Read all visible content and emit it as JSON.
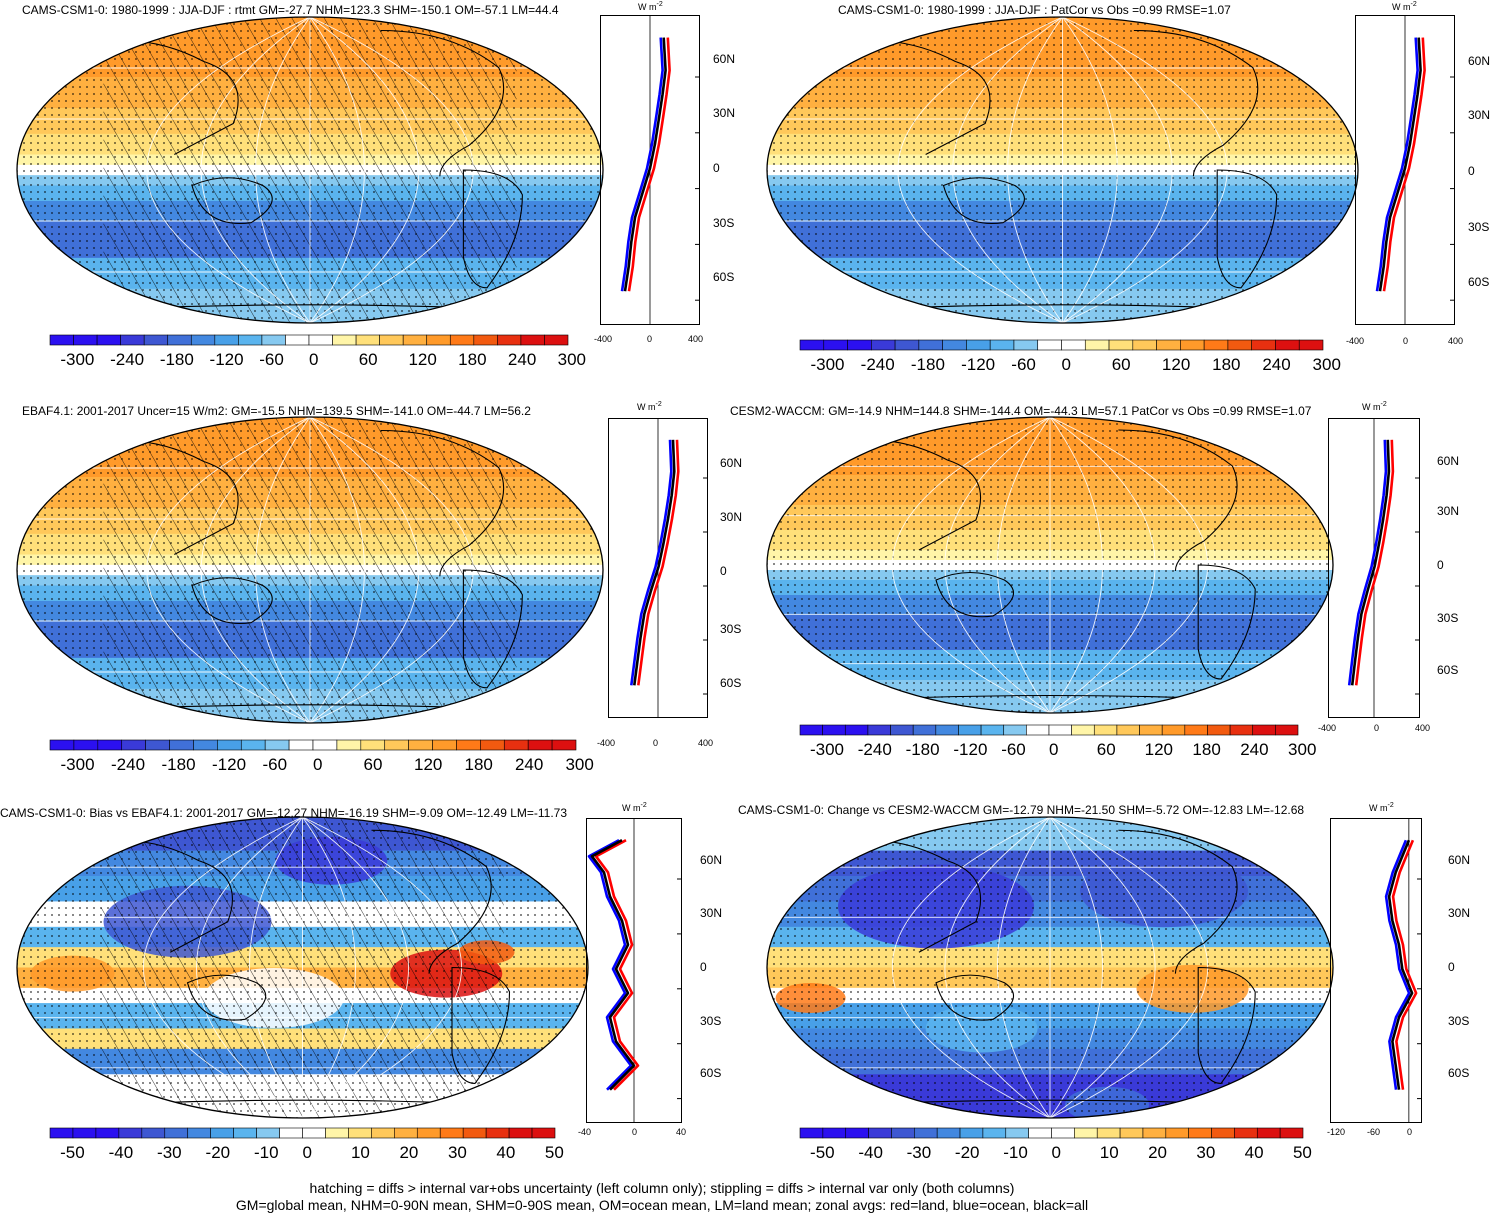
{
  "unit_label": "W m",
  "unit_exponent": "-2",
  "footer": {
    "line1": "hatching = diffs > internal var+obs uncertainty (left column only); stippling = diffs > internal var only (both columns)",
    "line2": "GM=global mean, NHM=0-90N mean, SHM=0-90S mean, OM=ocean mean, LM=land mean; zonal avgs: red=land, blue=ocean, black=all"
  },
  "colors": {
    "full_scale": [
      "#2b10f0",
      "#3a3ad8",
      "#3e57d2",
      "#4070d8",
      "#4388e0",
      "#48a0e8",
      "#5ab4ee",
      "#86c9f0",
      "#ffffff",
      "#ffffff",
      "#fff5a8",
      "#ffe07a",
      "#ffc85a",
      "#ffb040",
      "#ff9a2a",
      "#ff7a18",
      "#f25a10",
      "#e83010",
      "#dc1010"
    ],
    "line_land": "#ff0000",
    "line_ocean": "#0000ff",
    "line_all": "#000000"
  },
  "panels": [
    {
      "title": "CAMS-CSM1-0: 1980-1999 : JJA-DJF : rtmt GM=-27.7 NHM=123.3 SHM=-150.1 OM=-57.1 LM=44.4",
      "field": "mean",
      "hatched": true,
      "lat_labels": [
        "60N",
        "30N",
        "0",
        "30S",
        "60S"
      ],
      "zonal_xticks": [
        "-400",
        "0",
        "400"
      ],
      "colorbar_labels": [
        "-300",
        "-240",
        "-180",
        "-120",
        "-60",
        "0",
        "60",
        "120",
        "180",
        "240",
        "300"
      ]
    },
    {
      "title": "CAMS-CSM1-0: 1980-1999 : JJA-DJF : PatCor vs Obs =0.99 RMSE=1.07",
      "field": "mean",
      "hatched": false,
      "lat_labels": [
        "60N",
        "30N",
        "0",
        "30S",
        "60S"
      ],
      "zonal_xticks": [
        "-400",
        "0",
        "400"
      ],
      "colorbar_labels": [
        "-300",
        "-240",
        "-180",
        "-120",
        "-60",
        "0",
        "60",
        "120",
        "180",
        "240",
        "300"
      ]
    },
    {
      "title": "EBAF4.1: 2001-2017 Uncer=15 W/m2: GM=-15.5 NHM=139.5 SHM=-141.0 OM=-44.7 LM=56.2",
      "field": "mean",
      "hatched": true,
      "lat_labels": [
        "60N",
        "30N",
        "0",
        "30S",
        "60S"
      ],
      "zonal_xticks": [
        "-400",
        "0",
        "400"
      ],
      "colorbar_labels": [
        "-300",
        "-240",
        "-180",
        "-120",
        "-60",
        "0",
        "60",
        "120",
        "180",
        "240",
        "300"
      ]
    },
    {
      "title": "CESM2-WACCM: GM=-14.9 NHM=144.8 SHM=-144.4 OM=-44.3 LM=57.1 PatCor vs Obs =0.99 RMSE=1.07",
      "field": "mean",
      "hatched": false,
      "lat_labels": [
        "60N",
        "30N",
        "0",
        "30S",
        "60S"
      ],
      "zonal_xticks": [
        "-400",
        "0",
        "400"
      ],
      "colorbar_labels": [
        "-300",
        "-240",
        "-180",
        "-120",
        "-60",
        "0",
        "60",
        "120",
        "180",
        "240",
        "300"
      ]
    },
    {
      "title": "CAMS-CSM1-0: Bias vs EBAF4.1: 2001-2017 GM=-12.27 NHM=-16.19 SHM=-9.09 OM=-12.49 LM=-11.73",
      "field": "diff",
      "hatched": true,
      "lat_labels": [
        "60N",
        "30N",
        "0",
        "30S",
        "60S"
      ],
      "zonal_xticks": [
        "-40",
        "0",
        "40"
      ],
      "colorbar_labels": [
        "-50",
        "-40",
        "-30",
        "-20",
        "-10",
        "0",
        "10",
        "20",
        "30",
        "40",
        "50"
      ]
    },
    {
      "title": "CAMS-CSM1-0: Change vs CESM2-WACCM GM=-12.79 NHM=-21.50 SHM=-5.72 OM=-12.83 LM=-12.68",
      "field": "diff",
      "hatched": false,
      "lat_labels": [
        "60N",
        "30N",
        "0",
        "30S",
        "60S"
      ],
      "zonal_xticks": [
        "-120",
        "-60",
        "0"
      ],
      "colorbar_labels": [
        "-50",
        "-40",
        "-30",
        "-20",
        "-10",
        "0",
        "10",
        "20",
        "30",
        "40",
        "50"
      ]
    }
  ],
  "chart_data": [
    {
      "type": "heatmap",
      "title": "CAMS-CSM1-0: 1980-1999 : JJA-DJF : rtmt GM=-27.7 NHM=123.3 SHM=-150.1 OM=-57.1 LM=44.4",
      "ylabel": "W m-2",
      "zonal_lat": [
        80,
        60,
        45,
        30,
        15,
        0,
        -15,
        -30,
        -45,
        -60,
        -75
      ],
      "zonal_all": [
        110,
        125,
        100,
        70,
        40,
        0,
        -60,
        -120,
        -150,
        -170,
        -200
      ],
      "xlim": [
        -400,
        400
      ]
    },
    {
      "type": "heatmap",
      "title": "CAMS-CSM1-0: 1980-1999 : JJA-DJF : PatCor vs Obs =0.99 RMSE=1.07",
      "ylabel": "W m-2",
      "zonal_lat": [
        80,
        60,
        45,
        30,
        15,
        0,
        -15,
        -30,
        -45,
        -60,
        -75
      ],
      "zonal_all": [
        110,
        125,
        100,
        70,
        40,
        0,
        -60,
        -120,
        -150,
        -170,
        -200
      ],
      "xlim": [
        -400,
        400
      ]
    },
    {
      "type": "heatmap",
      "title": "EBAF4.1: 2001-2017 Uncer=15 W/m2: GM=-15.5 NHM=139.5 SHM=-141.0 OM=-44.7 LM=56.2",
      "ylabel": "W m-2",
      "zonal_lat": [
        80,
        60,
        45,
        30,
        15,
        0,
        -15,
        -30,
        -45,
        -60,
        -75
      ],
      "zonal_all": [
        120,
        130,
        110,
        80,
        45,
        5,
        -55,
        -110,
        -140,
        -165,
        -190
      ],
      "xlim": [
        -400,
        400
      ]
    },
    {
      "type": "heatmap",
      "title": "CESM2-WACCM: GM=-14.9 NHM=144.8 SHM=-144.4 OM=-44.3 LM=57.1 PatCor vs Obs =0.99 RMSE=1.07",
      "ylabel": "W m-2",
      "zonal_lat": [
        80,
        60,
        45,
        30,
        15,
        0,
        -15,
        -30,
        -45,
        -60,
        -75
      ],
      "zonal_all": [
        120,
        130,
        110,
        80,
        45,
        5,
        -55,
        -110,
        -140,
        -165,
        -190
      ],
      "xlim": [
        -400,
        400
      ]
    },
    {
      "type": "heatmap",
      "title": "CAMS-CSM1-0: Bias vs EBAF4.1: 2001-2017 GM=-12.27 NHM=-16.19 SHM=-9.09 OM=-12.49 LM=-11.73",
      "ylabel": "W m-2",
      "zonal_lat": [
        80,
        70,
        60,
        45,
        30,
        15,
        0,
        -15,
        -30,
        -45,
        -60,
        -75
      ],
      "zonal_all": [
        -10,
        -35,
        -25,
        -20,
        -10,
        -5,
        -15,
        -5,
        -20,
        -15,
        0,
        -20
      ],
      "xlim": [
        -40,
        40
      ]
    },
    {
      "type": "heatmap",
      "title": "CAMS-CSM1-0: Change vs CESM2-WACCM GM=-12.79 NHM=-21.50 SHM=-5.72 OM=-12.83 LM=-12.68",
      "ylabel": "W m-2",
      "zonal_lat": [
        80,
        70,
        60,
        45,
        30,
        15,
        0,
        -15,
        -30,
        -45,
        -60,
        -75
      ],
      "zonal_all": [
        0,
        -10,
        -20,
        -30,
        -25,
        -15,
        -10,
        5,
        -15,
        -25,
        -20,
        -15
      ],
      "xlim": [
        -120,
        20
      ]
    }
  ]
}
